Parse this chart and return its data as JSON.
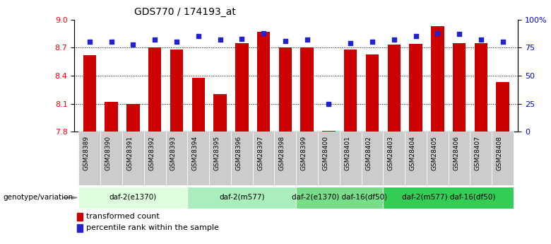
{
  "title": "GDS770 / 174193_at",
  "samples": [
    "GSM28389",
    "GSM28390",
    "GSM28391",
    "GSM28392",
    "GSM28393",
    "GSM28394",
    "GSM28395",
    "GSM28396",
    "GSM28397",
    "GSM28398",
    "GSM28399",
    "GSM28400",
    "GSM28401",
    "GSM28402",
    "GSM28403",
    "GSM28404",
    "GSM28405",
    "GSM28406",
    "GSM28407",
    "GSM28408"
  ],
  "transformed_count": [
    8.62,
    8.12,
    8.1,
    8.7,
    8.68,
    8.38,
    8.2,
    8.75,
    8.87,
    8.7,
    8.7,
    7.81,
    8.68,
    8.63,
    8.73,
    8.74,
    8.93,
    8.75,
    8.75,
    8.33
  ],
  "percentile_rank": [
    80,
    80,
    78,
    82,
    80,
    85,
    82,
    83,
    88,
    81,
    82,
    25,
    79,
    80,
    82,
    85,
    88,
    87,
    82,
    80
  ],
  "ylim_left": [
    7.8,
    9.0
  ],
  "ylim_right": [
    0,
    100
  ],
  "yticks_left": [
    7.8,
    8.1,
    8.4,
    8.7,
    9.0
  ],
  "yticks_right": [
    0,
    25,
    50,
    75,
    100
  ],
  "ytick_labels_right": [
    "0",
    "25",
    "50",
    "75",
    "100%"
  ],
  "bar_color": "#cc0000",
  "dot_color": "#2222cc",
  "groups": [
    {
      "label": "daf-2(e1370)",
      "start": 0,
      "end": 5,
      "color": "#ddffdd"
    },
    {
      "label": "daf-2(m577)",
      "start": 5,
      "end": 10,
      "color": "#aaeebb"
    },
    {
      "label": "daf-2(e1370) daf-16(df50)",
      "start": 10,
      "end": 14,
      "color": "#77dd88"
    },
    {
      "label": "daf-2(m577) daf-16(df50)",
      "start": 14,
      "end": 20,
      "color": "#33cc55"
    }
  ],
  "genotype_label": "genotype/variation",
  "legend_items": [
    {
      "label": "transformed count",
      "color": "#cc0000"
    },
    {
      "label": "percentile rank within the sample",
      "color": "#2222cc"
    }
  ],
  "sample_box_color": "#cccccc",
  "fig_bg": "#ffffff"
}
